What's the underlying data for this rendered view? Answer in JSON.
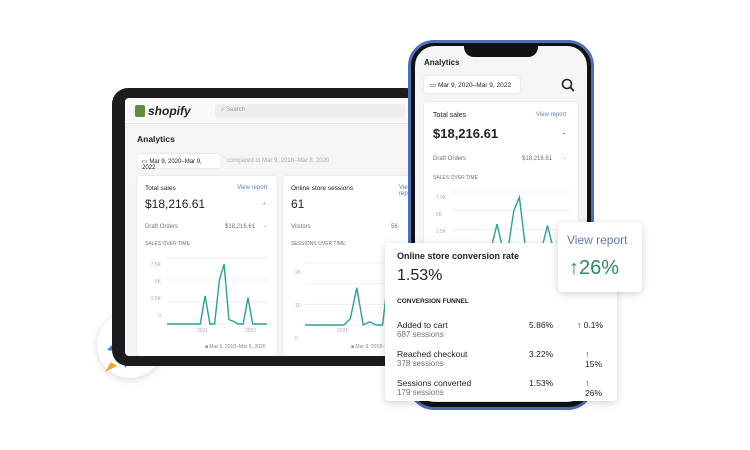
{
  "tablet": {
    "brand": "shopify",
    "search_placeholder": "Search",
    "title": "Analytics",
    "date_range": "Mar 9, 2020–Mar 9, 2022",
    "compared": "compared to Mar 9, 2018–Mar 8, 2020",
    "sales": {
      "title": "Total sales",
      "link": "View report",
      "value": "$18,216.61",
      "dash": "-",
      "row_label": "Draft Orders",
      "row_value": "$18,216.61",
      "row_dash": "-",
      "chart_label": "SALES OVER TIME",
      "y_ticks": [
        "7.5K",
        "5K",
        "2.5K",
        "0"
      ],
      "x_ticks": [
        "2021",
        "2022"
      ],
      "legend": "Mar 9, 2018–Mar 8, 2020",
      "values": [
        0,
        0,
        0,
        0,
        0,
        0,
        0,
        0,
        3200,
        0,
        0,
        5000,
        6800,
        500,
        300,
        0,
        0,
        3000,
        0,
        0,
        0,
        0
      ]
    },
    "sessions": {
      "title": "Online store sessions",
      "link": "View report",
      "value": "61",
      "row_label": "Visitors",
      "row_value": "56",
      "chart_label": "SESSIONS OVER TIME",
      "y_ticks": [
        "20",
        "10",
        "0"
      ],
      "x_ticks": [
        "2021"
      ],
      "legend": "Mar 9, 2018–Mar 8, 2020",
      "values": [
        0,
        0,
        0,
        0,
        0,
        0,
        0,
        2,
        12,
        0,
        1,
        0,
        0,
        18,
        1,
        5,
        0,
        8
      ]
    }
  },
  "phone": {
    "title": "Analytics",
    "date_range": "Mar 9, 2020–Mar 9, 2022",
    "search_icon": "search-icon",
    "sales": {
      "title": "Total sales",
      "link": "View report",
      "value": "$18,216.61",
      "dash": "-",
      "row_label": "Draft Orders",
      "row_value": "$18,216.61",
      "row_dash": "-",
      "chart_label": "SALES OVER TIME",
      "y_ticks": [
        "7.5K",
        "5K",
        "2.5K"
      ]
    }
  },
  "conversion": {
    "title": "Online store conversion rate",
    "value": "1.53%",
    "funnel_label": "CONVERSION FUNNEL",
    "rows": [
      {
        "label": "Added to cart",
        "sessions": "687 sessions",
        "rate": "5.86%",
        "change": "↑ 0.1%"
      },
      {
        "label": "Reached checkout",
        "sessions": "378 sessions",
        "rate": "3.22%",
        "change": "↑ 15%"
      },
      {
        "label": "Sessions converted",
        "sessions": "179 sessions",
        "rate": "1.53%",
        "change": "↑ 26%"
      }
    ]
  },
  "view_report": {
    "link": "View report",
    "change": "↑26%"
  },
  "colors": {
    "accent": "#2aa198",
    "link": "#5c7bb5",
    "green": "#2a8a5c",
    "phone_frame": "#4c6fb8"
  }
}
